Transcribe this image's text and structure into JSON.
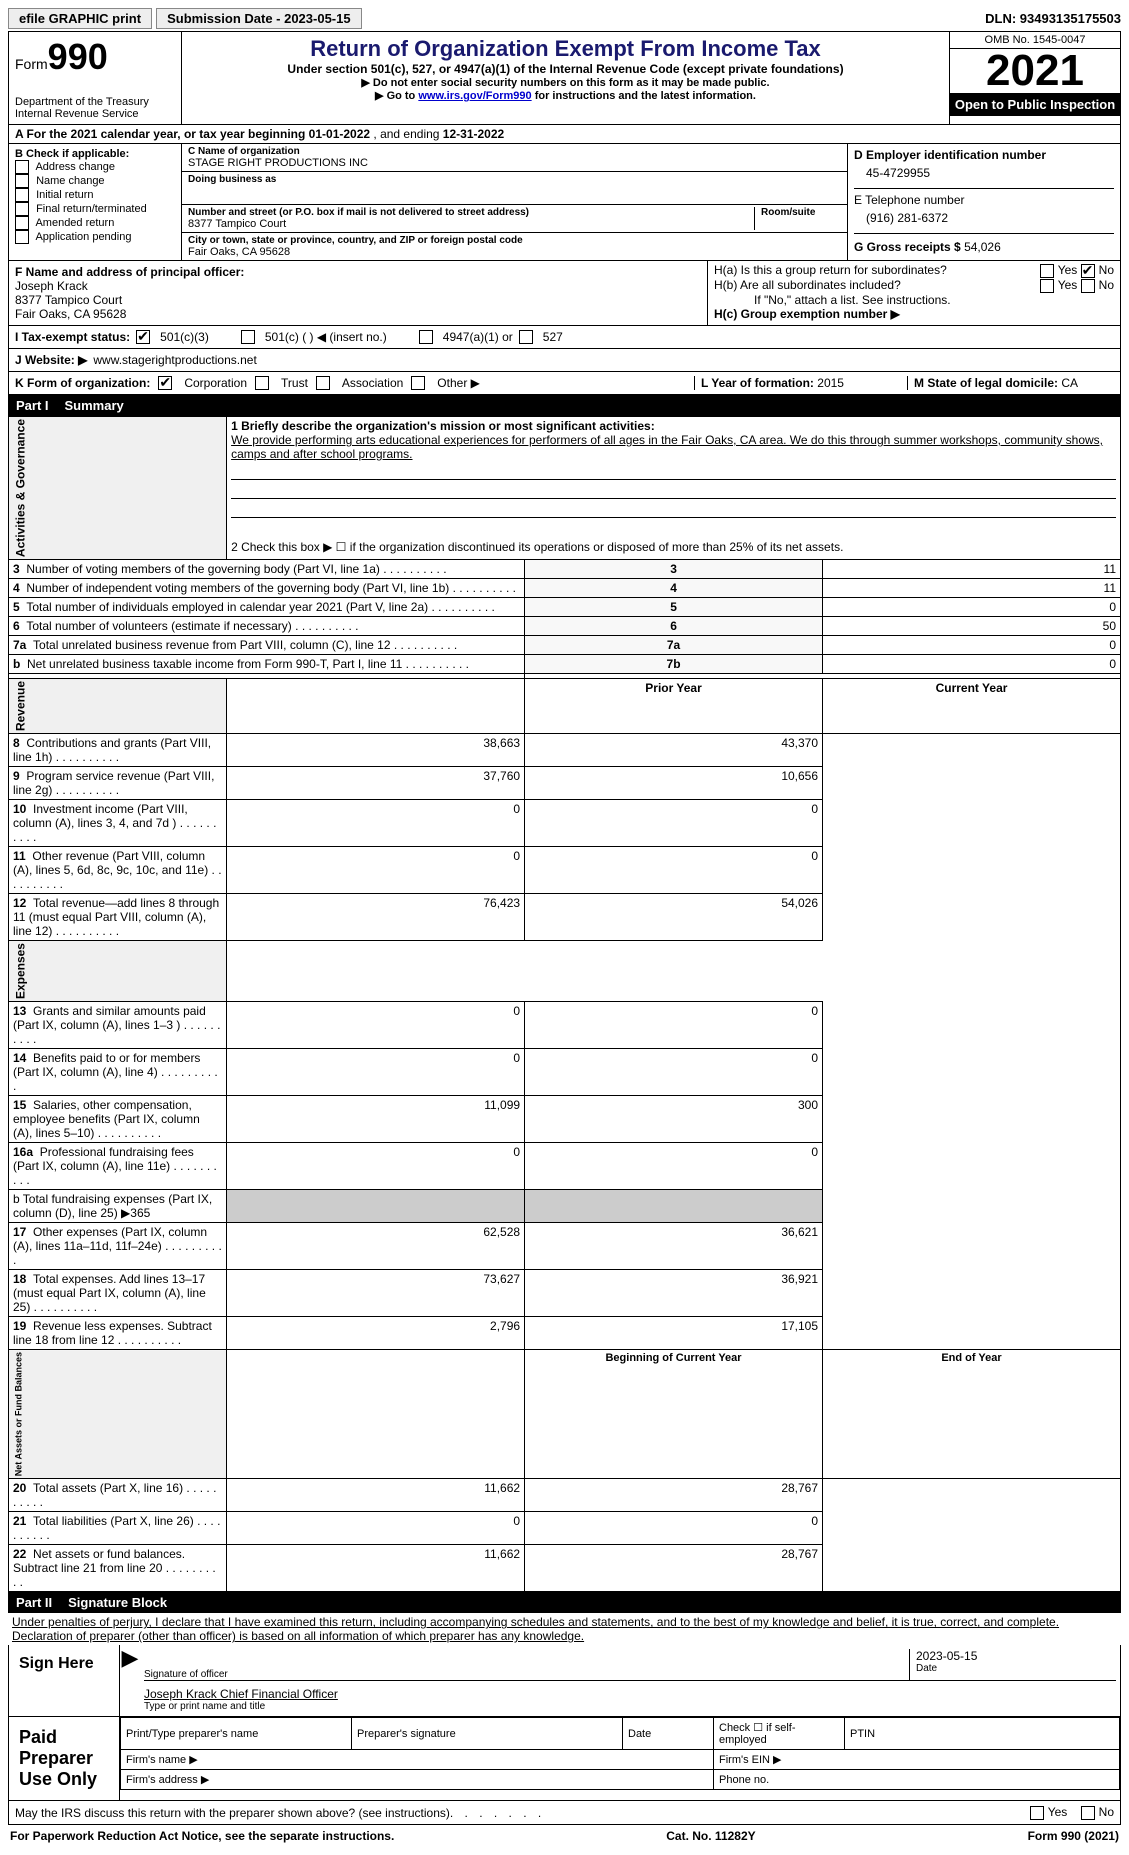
{
  "topbar": {
    "efile": "efile GRAPHIC print",
    "submission_label": "Submission Date - 2023-05-15",
    "dln": "DLN: 93493135175503"
  },
  "header": {
    "form_word": "Form",
    "form_num": "990",
    "dept": "Department of the Treasury",
    "irs": "Internal Revenue Service",
    "title": "Return of Organization Exempt From Income Tax",
    "subtitle": "Under section 501(c), 527, or 4947(a)(1) of the Internal Revenue Code (except private foundations)",
    "note1": "▶ Do not enter social security numbers on this form as it may be made public.",
    "note2_pre": "▶ Go to ",
    "note2_link": "www.irs.gov/Form990",
    "note2_post": " for instructions and the latest information.",
    "omb": "OMB No. 1545-0047",
    "year": "2021",
    "open": "Open to Public Inspection"
  },
  "rowA": {
    "text_pre": "A For the 2021 calendar year, or tax year beginning ",
    "begin": "01-01-2022",
    "mid": "  , and ending ",
    "end": "12-31-2022"
  },
  "colB": {
    "label": "B Check if applicable:",
    "opts": [
      "Address change",
      "Name change",
      "Initial return",
      "Final return/terminated",
      "Amended return",
      "Application pending"
    ]
  },
  "colC": {
    "name_label": "C Name of organization",
    "name": "STAGE RIGHT PRODUCTIONS INC",
    "dba_label": "Doing business as",
    "addr_label": "Number and street (or P.O. box if mail is not delivered to street address)",
    "room_label": "Room/suite",
    "addr": "8377 Tampico Court",
    "city_label": "City or town, state or province, country, and ZIP or foreign postal code",
    "city": "Fair Oaks, CA  95628"
  },
  "colD": {
    "ein_label": "D Employer identification number",
    "ein": "45-4729955",
    "phone_label": "E Telephone number",
    "phone": "(916) 281-6372",
    "gross_label": "G Gross receipts $",
    "gross": "54,026"
  },
  "colF": {
    "label": "F  Name and address of principal officer:",
    "name": "Joseph Krack",
    "addr1": "8377 Tampico Court",
    "addr2": "Fair Oaks, CA  95628"
  },
  "colH": {
    "ha": "H(a)  Is this a group return for subordinates?",
    "hb": "H(b)  Are all subordinates included?",
    "hb_note": "If \"No,\" attach a list. See instructions.",
    "hc": "H(c)  Group exemption number ▶",
    "yes": "Yes",
    "no": "No"
  },
  "rowI": {
    "label": "I   Tax-exempt status:",
    "o1": "501(c)(3)",
    "o2": "501(c) (  ) ◀ (insert no.)",
    "o3": "4947(a)(1) or",
    "o4": "527"
  },
  "rowJ": {
    "label": "J   Website: ▶",
    "value": "  www.stagerightproductions.net"
  },
  "rowK": {
    "label": "K Form of organization:",
    "o1": "Corporation",
    "o2": "Trust",
    "o3": "Association",
    "o4": "Other ▶",
    "l_label": "L Year of formation:",
    "l_val": "2015",
    "m_label": "M State of legal domicile:",
    "m_val": "CA"
  },
  "part1": {
    "label": "Part I",
    "title": "Summary"
  },
  "summary": {
    "side_ag": "Activities & Governance",
    "side_rev": "Revenue",
    "side_exp": "Expenses",
    "side_net": "Net Assets or Fund Balances",
    "l1_label": "1  Briefly describe the organization's mission or most significant activities:",
    "l1_text": "We provide performing arts educational experiences for performers of all ages in the Fair Oaks, CA area. We do this through summer workshops, community shows, camps and after school programs.",
    "l2": "2    Check this box ▶ ☐  if the organization discontinued its operations or disposed of more than 25% of its net assets.",
    "rows_ag": [
      {
        "n": "3",
        "t": "Number of voting members of the governing body (Part VI, line 1a)",
        "box": "3",
        "v": "11"
      },
      {
        "n": "4",
        "t": "Number of independent voting members of the governing body (Part VI, line 1b)",
        "box": "4",
        "v": "11"
      },
      {
        "n": "5",
        "t": "Total number of individuals employed in calendar year 2021 (Part V, line 2a)",
        "box": "5",
        "v": "0"
      },
      {
        "n": "6",
        "t": "Total number of volunteers (estimate if necessary)",
        "box": "6",
        "v": "50"
      },
      {
        "n": "7a",
        "t": "Total unrelated business revenue from Part VIII, column (C), line 12",
        "box": "7a",
        "v": "0"
      },
      {
        "n": "b",
        "t": "Net unrelated business taxable income from Form 990-T, Part I, line 11",
        "box": "7b",
        "v": "0"
      }
    ],
    "hdr_prior": "Prior Year",
    "hdr_curr": "Current Year",
    "rows_rev": [
      {
        "n": "8",
        "t": "Contributions and grants (Part VIII, line 1h)",
        "p": "38,663",
        "c": "43,370"
      },
      {
        "n": "9",
        "t": "Program service revenue (Part VIII, line 2g)",
        "p": "37,760",
        "c": "10,656"
      },
      {
        "n": "10",
        "t": "Investment income (Part VIII, column (A), lines 3, 4, and 7d )",
        "p": "0",
        "c": "0"
      },
      {
        "n": "11",
        "t": "Other revenue (Part VIII, column (A), lines 5, 6d, 8c, 9c, 10c, and 11e)",
        "p": "0",
        "c": "0"
      },
      {
        "n": "12",
        "t": "Total revenue—add lines 8 through 11 (must equal Part VIII, column (A), line 12)",
        "p": "76,423",
        "c": "54,026"
      }
    ],
    "rows_exp": [
      {
        "n": "13",
        "t": "Grants and similar amounts paid (Part IX, column (A), lines 1–3 )",
        "p": "0",
        "c": "0"
      },
      {
        "n": "14",
        "t": "Benefits paid to or for members (Part IX, column (A), line 4)",
        "p": "0",
        "c": "0"
      },
      {
        "n": "15",
        "t": "Salaries, other compensation, employee benefits (Part IX, column (A), lines 5–10)",
        "p": "11,099",
        "c": "300"
      },
      {
        "n": "16a",
        "t": "Professional fundraising fees (Part IX, column (A), line 11e)",
        "p": "0",
        "c": "0"
      }
    ],
    "l16b": "b  Total fundraising expenses (Part IX, column (D), line 25) ▶365",
    "rows_exp2": [
      {
        "n": "17",
        "t": "Other expenses (Part IX, column (A), lines 11a–11d, 11f–24e)",
        "p": "62,528",
        "c": "36,621"
      },
      {
        "n": "18",
        "t": "Total expenses. Add lines 13–17 (must equal Part IX, column (A), line 25)",
        "p": "73,627",
        "c": "36,921"
      },
      {
        "n": "19",
        "t": "Revenue less expenses. Subtract line 18 from line 12",
        "p": "2,796",
        "c": "17,105"
      }
    ],
    "hdr_boy": "Beginning of Current Year",
    "hdr_eoy": "End of Year",
    "rows_net": [
      {
        "n": "20",
        "t": "Total assets (Part X, line 16)",
        "p": "11,662",
        "c": "28,767"
      },
      {
        "n": "21",
        "t": "Total liabilities (Part X, line 26)",
        "p": "0",
        "c": "0"
      },
      {
        "n": "22",
        "t": "Net assets or fund balances. Subtract line 21 from line 20",
        "p": "11,662",
        "c": "28,767"
      }
    ]
  },
  "part2": {
    "label": "Part II",
    "title": "Signature Block",
    "penalty": "Under penalties of perjury, I declare that I have examined this return, including accompanying schedules and statements, and to the best of my knowledge and belief, it is true, correct, and complete. Declaration of preparer (other than officer) is based on all information of which preparer has any knowledge."
  },
  "sign": {
    "here": "Sign Here",
    "sig_officer": "Signature of officer",
    "date_label": "Date",
    "date": "2023-05-15",
    "typed": "Joseph Krack  Chief Financial Officer",
    "typed_label": "Type or print name and title"
  },
  "preparer": {
    "title": "Paid Preparer Use Only",
    "name_label": "Print/Type preparer's name",
    "sig_label": "Preparer's signature",
    "date_label": "Date",
    "self_label": "Check ☐ if self-employed",
    "ptin_label": "PTIN",
    "firm_name": "Firm's name    ▶",
    "firm_ein": "Firm's EIN ▶",
    "firm_addr": "Firm's address ▶",
    "phone": "Phone no."
  },
  "bottom": {
    "discuss": "May the IRS discuss this return with the preparer shown above? (see instructions)",
    "yes": "Yes",
    "no": "No",
    "paperwork": "For Paperwork Reduction Act Notice, see the separate instructions.",
    "cat": "Cat. No. 11282Y",
    "form": "Form 990 (2021)"
  }
}
